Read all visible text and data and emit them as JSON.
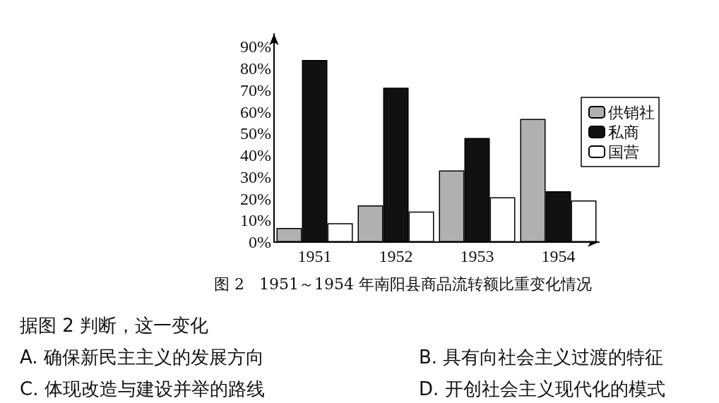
{
  "chart_data": {
    "type": "bar",
    "title": "图 2   1951～1954 年南阳县商品流转额比重变化情况",
    "categories": [
      "1951",
      "1952",
      "1953",
      "1954"
    ],
    "series": [
      {
        "name": "供销社",
        "color": "#b0b0b0",
        "values": [
          6.5,
          16.9,
          33,
          56.8
        ]
      },
      {
        "name": "私商",
        "color": "#111111",
        "values": [
          84,
          71.2,
          48,
          23.4
        ]
      },
      {
        "name": "国营",
        "color": "#ffffff",
        "values": [
          8.7,
          14.1,
          20.7,
          19.2
        ]
      }
    ],
    "ylim": [
      0,
      96
    ],
    "yticks": [
      {
        "value": 0,
        "label": "0%"
      },
      {
        "value": 10,
        "label": "10%"
      },
      {
        "value": 20,
        "label": "20%"
      },
      {
        "value": 30,
        "label": "30%"
      },
      {
        "value": 40,
        "label": "40%"
      },
      {
        "value": 50,
        "label": "50%"
      },
      {
        "value": 60,
        "label": "60%"
      },
      {
        "value": 70,
        "label": "70%"
      },
      {
        "value": 80,
        "label": "80%"
      },
      {
        "value": 90,
        "label": "90%"
      }
    ],
    "grid": false,
    "legend": "right",
    "annotations": [
      "据图 2 判断，这一变化",
      "A. 确保新民主主义的发展方向",
      "B. 具有向社会主义过渡的特征",
      "C. 体现改造与建设并举的路线",
      "D. 开创社会主义现代化的模式"
    ]
  }
}
